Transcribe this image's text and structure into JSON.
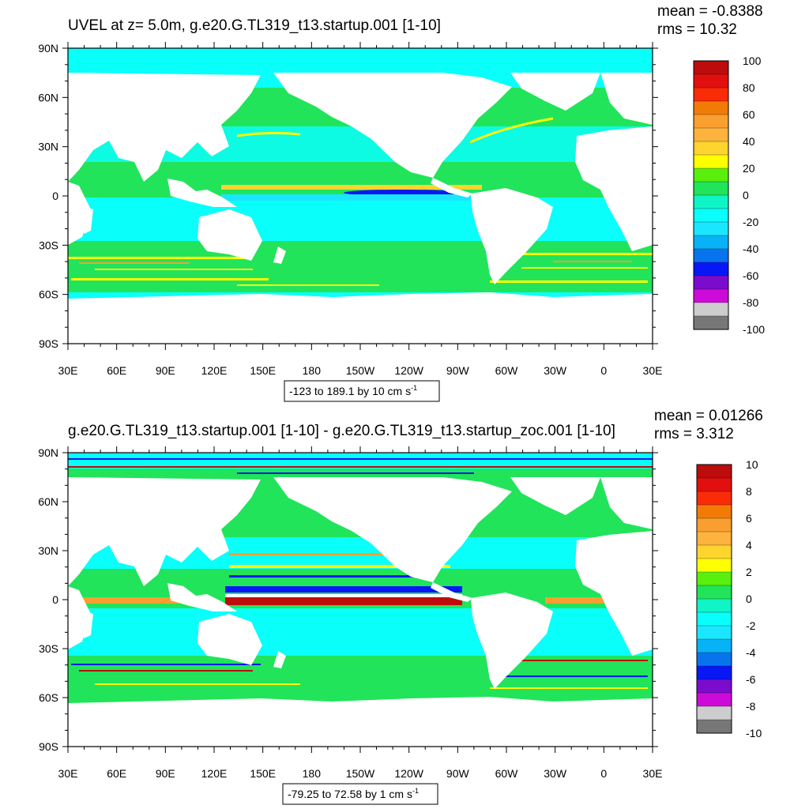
{
  "panels": [
    {
      "title": "UVEL at z=   5.0m, g.e20.G.TL319_t13.startup.001 [1-10]",
      "mean": "mean = -0.8388",
      "rms": "rms = 10.32",
      "range_label": "-123 to 189.1 by 10 cm s",
      "range_sup": "-1",
      "colorbar_labels": [
        "100",
        "80",
        "60",
        "40",
        "20",
        "0",
        "-20",
        "-40",
        "-60",
        "-80",
        "-100"
      ]
    },
    {
      "title": "g.e20.G.TL319_t13.startup.001 [1-10] - g.e20.G.TL319_t13.startup_zoc.001 [1-10]",
      "mean": "mean = 0.01266",
      "rms": "rms = 3.312",
      "range_label": "-79.25 to 72.58 by 1 cm s",
      "range_sup": "-1",
      "colorbar_labels": [
        "10",
        "8",
        "6",
        "4",
        "2",
        "0",
        "-2",
        "-4",
        "-6",
        "-8",
        "-10"
      ]
    }
  ],
  "lat_labels": [
    "90N",
    "60N",
    "30N",
    "0",
    "30S",
    "60S",
    "90S"
  ],
  "lon_labels": [
    "30E",
    "60E",
    "90E",
    "120E",
    "150E",
    "180",
    "150W",
    "120W",
    "90W",
    "60W",
    "30W",
    "0",
    "30E"
  ],
  "colorbar_colors": [
    "#bd0c0c",
    "#e1100f",
    "#fa2b07",
    "#f27b07",
    "#f99f30",
    "#fdb33d",
    "#fed42f",
    "#ffff00",
    "#5af00d",
    "#21e45a",
    "#0ff5c6",
    "#09fffa",
    "#1ae7ff",
    "#07b3f6",
    "#0774ed",
    "#0717f5",
    "#7c0ccd",
    "#cd0bd8",
    "#cdcdcd",
    "#777777"
  ],
  "ocean_colors": {
    "base": "#21e45a",
    "cyan": "#09fffa",
    "cyan_light": "#1ae7ff",
    "blue": "#0717f5",
    "yellow": "#ffff00",
    "orange": "#f99f30",
    "red": "#bd0c0c"
  }
}
